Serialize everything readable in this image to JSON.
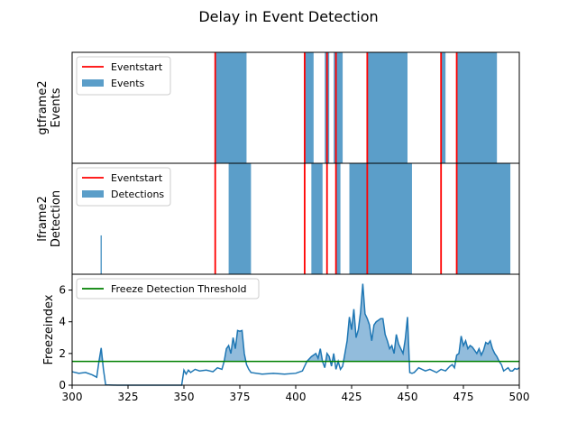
{
  "title": "Delay in Event Detection",
  "colors": {
    "event_line": "#ff0000",
    "bar": "#5b9ec9",
    "freeze_line": "#1f77b4",
    "freeze_fill": "#7fb0d6",
    "threshold": "#008000"
  },
  "chart_data": [
    {
      "type": "bar",
      "panel": "top",
      "ylabel": "gtframe2\nEvents",
      "xlim": [
        300,
        500
      ],
      "legend": [
        "Eventstart",
        "Events"
      ],
      "legend_position": "top-left",
      "eventstart": [
        364,
        404,
        414,
        418,
        432,
        465,
        472
      ],
      "intervals": [
        [
          364,
          378
        ],
        [
          404,
          408
        ],
        [
          413,
          415
        ],
        [
          417,
          421
        ],
        [
          432,
          450
        ],
        [
          465,
          467
        ],
        [
          472,
          490
        ]
      ]
    },
    {
      "type": "bar",
      "panel": "middle",
      "ylabel": "lframe2\nDetection",
      "xlim": [
        300,
        500
      ],
      "legend": [
        "Eventstart",
        "Detections"
      ],
      "legend_position": "top-left",
      "eventstart": [
        364,
        404,
        414,
        418,
        432,
        465,
        472
      ],
      "intervals": [
        [
          370,
          380
        ],
        [
          407,
          412
        ],
        [
          418,
          420
        ],
        [
          424,
          452
        ],
        [
          472,
          496
        ]
      ],
      "spikes": [
        [
          313,
          0.35
        ]
      ]
    },
    {
      "type": "area",
      "panel": "bottom",
      "ylabel": "Freezeindex",
      "xlabel": "",
      "xlim": [
        300,
        500
      ],
      "ylim": [
        0,
        7
      ],
      "xticks": [
        300,
        325,
        350,
        375,
        400,
        425,
        450,
        475,
        500
      ],
      "yticks": [
        0,
        2,
        4,
        6
      ],
      "threshold": 1.5,
      "legend": [
        "Freeze Detection Threshold"
      ],
      "legend_position": "top-left",
      "x": [
        300,
        303,
        306,
        309,
        311,
        312,
        313,
        314,
        315,
        320,
        330,
        340,
        349,
        350,
        351,
        352,
        353,
        355,
        357,
        360,
        363,
        365,
        367,
        368,
        369,
        370,
        371,
        372,
        373,
        374,
        375,
        376,
        377,
        378,
        379,
        380,
        385,
        390,
        395,
        400,
        403,
        405,
        407,
        409,
        410,
        411,
        412,
        413,
        414,
        415,
        416,
        417,
        418,
        419,
        420,
        421,
        422,
        423,
        424,
        425,
        426,
        427,
        428,
        429,
        430,
        431,
        432,
        433,
        434,
        435,
        436,
        437,
        438,
        439,
        440,
        441,
        442,
        443,
        444,
        445,
        446,
        447,
        448,
        449,
        450,
        451,
        452,
        453,
        455,
        458,
        460,
        463,
        465,
        467,
        469,
        470,
        471,
        472,
        473,
        474,
        475,
        476,
        477,
        478,
        479,
        480,
        481,
        482,
        483,
        484,
        485,
        486,
        487,
        488,
        489,
        490,
        491,
        492,
        493,
        494,
        495,
        496,
        497,
        498,
        499,
        500
      ],
      "y": [
        0.85,
        0.75,
        0.8,
        0.65,
        0.5,
        1.5,
        2.35,
        1.0,
        0.02,
        0.0,
        0.0,
        0.0,
        0.0,
        0.95,
        0.7,
        0.95,
        0.8,
        1.0,
        0.9,
        0.95,
        0.85,
        1.1,
        1.0,
        1.5,
        2.3,
        2.5,
        2.0,
        3.0,
        2.3,
        3.45,
        3.4,
        3.45,
        2.0,
        1.3,
        1.0,
        0.8,
        0.7,
        0.75,
        0.7,
        0.75,
        0.9,
        1.5,
        1.8,
        2.0,
        1.7,
        2.3,
        1.5,
        1.1,
        2.0,
        1.8,
        1.2,
        2.0,
        1.0,
        1.5,
        1.0,
        1.2,
        2.0,
        2.8,
        4.3,
        3.5,
        4.8,
        3.0,
        3.5,
        4.6,
        6.4,
        4.5,
        4.2,
        3.8,
        2.8,
        3.8,
        4.0,
        4.1,
        4.2,
        4.2,
        3.2,
        2.8,
        2.3,
        2.5,
        2.0,
        3.2,
        2.6,
        2.3,
        2.0,
        2.9,
        4.3,
        0.8,
        0.75,
        0.8,
        1.1,
        0.9,
        1.0,
        0.8,
        1.0,
        0.9,
        1.2,
        1.3,
        1.1,
        1.9,
        2.0,
        3.1,
        2.5,
        2.8,
        2.3,
        2.5,
        2.4,
        2.2,
        2.0,
        2.3,
        1.9,
        2.2,
        2.7,
        2.6,
        2.8,
        2.3,
        2.0,
        1.8,
        1.5,
        1.3,
        0.9,
        1.0,
        1.1,
        0.9,
        0.9,
        1.05,
        1.0,
        1.1
      ]
    }
  ]
}
